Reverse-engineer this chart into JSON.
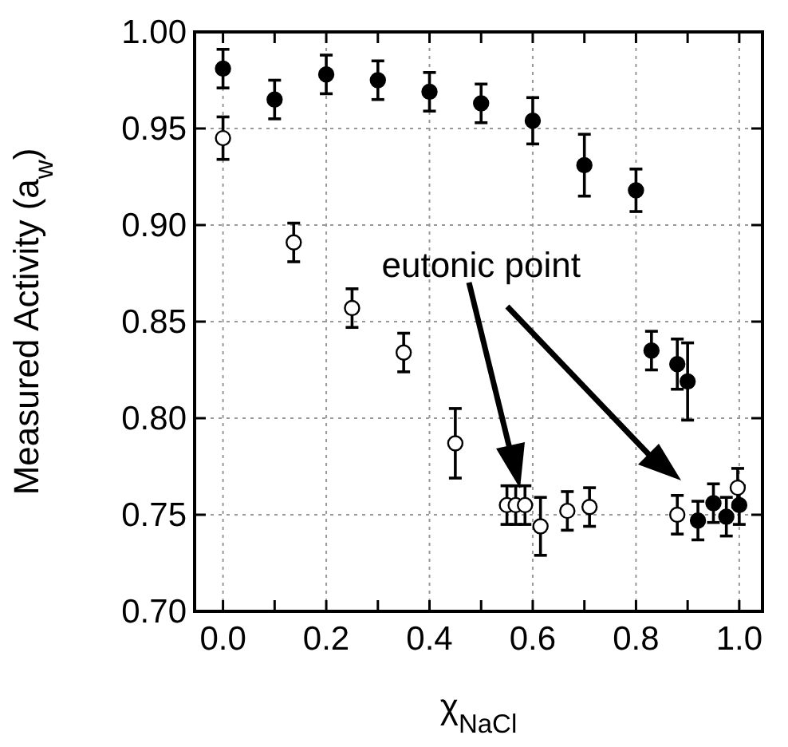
{
  "chart_data": {
    "type": "scatter",
    "xlabel": "χ$_{NaCl}$",
    "ylabel": "Measured Activity (a$_{w}$)",
    "xlim": [
      -0.055,
      1.045
    ],
    "ylim": [
      0.7,
      1.0
    ],
    "xticks": [
      {
        "value": 0,
        "label": "0.0"
      },
      {
        "value": 0.1,
        "label": null
      },
      {
        "value": 0.2,
        "label": "0.2"
      },
      {
        "value": 0.3,
        "label": null
      },
      {
        "value": 0.4,
        "label": "0.4"
      },
      {
        "value": 0.5,
        "label": null
      },
      {
        "value": 0.6,
        "label": "0.6"
      },
      {
        "value": 0.7,
        "label": null
      },
      {
        "value": 0.8,
        "label": "0.8"
      },
      {
        "value": 0.9,
        "label": null
      },
      {
        "value": 1,
        "label": "1.0"
      }
    ],
    "yticks": [
      {
        "value": 0.7,
        "label": "0.70"
      },
      {
        "value": 0.75,
        "label": "0.75"
      },
      {
        "value": 0.8,
        "label": "0.80"
      },
      {
        "value": 0.85,
        "label": "0.85"
      },
      {
        "value": 0.9,
        "label": "0.90"
      },
      {
        "value": 0.95,
        "label": "0.95"
      },
      {
        "value": 1,
        "label": "1.00"
      }
    ],
    "grid": true,
    "marker": "circle",
    "series": [
      {
        "color": "#000000",
        "x": [
          0,
          0.1,
          0.2,
          0.3,
          0.4,
          0.5,
          0.6,
          0.7,
          0.8,
          0.83,
          0.88,
          0.9,
          0.92,
          0.95,
          0.975,
          1.0
        ],
        "values": [
          0.981,
          0.965,
          0.978,
          0.975,
          0.969,
          0.963,
          0.954,
          0.931,
          0.918,
          0.835,
          0.828,
          0.819,
          0.747,
          0.756,
          0.749,
          0.755
        ],
        "errors": [
          0.01,
          0.01,
          0.01,
          0.01,
          0.01,
          0.01,
          0.012,
          0.016,
          0.011,
          0.01,
          0.013,
          0.02,
          0.01,
          0.01,
          0.01,
          0.01
        ]
      },
      {
        "color": "#ffffff",
        "x": [
          0,
          0.137,
          0.25,
          0.35,
          0.45,
          0.55,
          0.567,
          0.585,
          0.615,
          0.667,
          0.71,
          0.88,
          0.997
        ],
        "values": [
          0.945,
          0.891,
          0.857,
          0.834,
          0.787,
          0.755,
          0.755,
          0.755,
          0.744,
          0.752,
          0.754,
          0.75,
          0.764
        ],
        "errors": [
          0.011,
          0.01,
          0.01,
          0.01,
          0.018,
          0.01,
          0.01,
          0.01,
          0.015,
          0.01,
          0.01,
          0.01,
          0.01
        ]
      }
    ],
    "annotations": [
      "eutonic point"
    ]
  }
}
